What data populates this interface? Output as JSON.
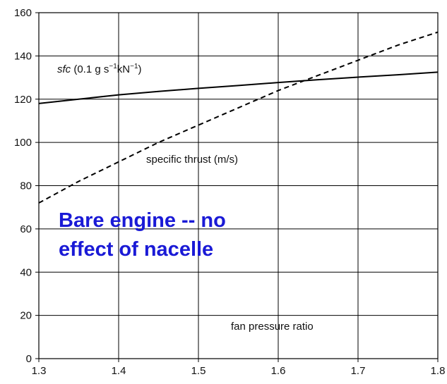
{
  "chart_data": {
    "type": "line",
    "xlim": [
      1.3,
      1.8
    ],
    "ylim": [
      0,
      160
    ],
    "grid": true,
    "x_ticks": [
      "1.3",
      "1.4",
      "1.5",
      "1.6",
      "1.7",
      "1.8"
    ],
    "y_ticks": [
      "0",
      "20",
      "40",
      "60",
      "80",
      "100",
      "120",
      "140",
      "160"
    ],
    "series": [
      {
        "style": "solid",
        "x": [
          1.3,
          1.35,
          1.4,
          1.45,
          1.5,
          1.55,
          1.6,
          1.65,
          1.7,
          1.75,
          1.8
        ],
        "y": [
          118,
          120,
          122,
          123.6,
          125,
          126.3,
          127.7,
          129,
          130.2,
          131.3,
          132.5
        ]
      },
      {
        "style": "dashed",
        "x": [
          1.3,
          1.35,
          1.4,
          1.45,
          1.5,
          1.55,
          1.6,
          1.65,
          1.7,
          1.75,
          1.8
        ],
        "y": [
          72,
          82,
          91,
          100,
          108,
          116,
          124,
          131,
          138,
          145,
          151
        ]
      }
    ],
    "annotations": {
      "sfc_label_italic": "sfc",
      "sfc_label_rest": " (0.1 g s",
      "sfc_label_sup1": "−1",
      "sfc_label_mid": "kN",
      "sfc_label_sup2": "−1",
      "sfc_label_end": ")",
      "thrust_label": "specific thrust (m/s)",
      "x_axis_label": "fan pressure ratio",
      "overlay_line1": "Bare engine -- no",
      "overlay_line2": "effect of nacelle"
    }
  }
}
